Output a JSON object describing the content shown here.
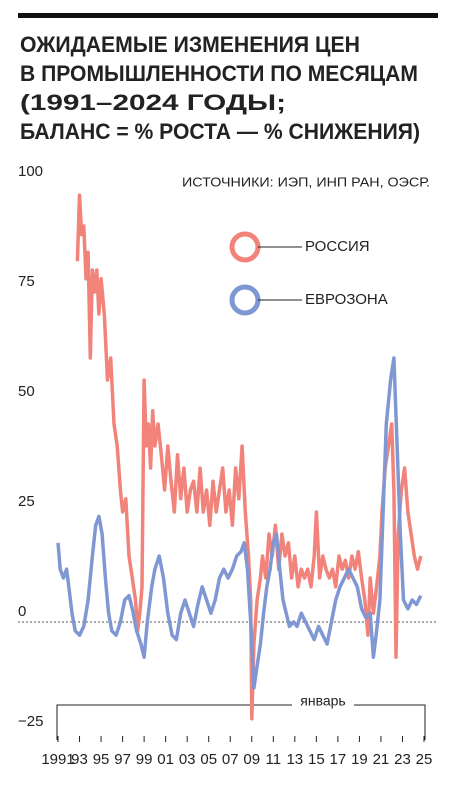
{
  "chart_data": {
    "type": "line",
    "title": [
      "ОЖИДАЕМЫЕ ИЗМЕНЕНИЯ ЦЕН",
      "В ПРОМЫШЛЕННОСТИ ПО МЕСЯЦАМ",
      "(1991–2024 ГОДЫ;",
      "БАЛАНС = % РОСТА — % СНИЖЕНИЯ)"
    ],
    "source": "ИСТОЧНИКИ: ИЭП, ИНП РАН, ОЭСР.",
    "annotation": "январь",
    "xlim": [
      1991,
      2025
    ],
    "xticks": [
      {
        "value": 1991,
        "label": "1991"
      },
      {
        "value": 1993,
        "label": "93"
      },
      {
        "value": 1995,
        "label": "95"
      },
      {
        "value": 1997,
        "label": "97"
      },
      {
        "value": 1999,
        "label": "99"
      },
      {
        "value": 2001,
        "label": "01"
      },
      {
        "value": 2003,
        "label": "03"
      },
      {
        "value": 2005,
        "label": "05"
      },
      {
        "value": 2007,
        "label": "07"
      },
      {
        "value": 2009,
        "label": "09"
      },
      {
        "value": 2011,
        "label": "11"
      },
      {
        "value": 2013,
        "label": "13"
      },
      {
        "value": 2015,
        "label": "15"
      },
      {
        "value": 2017,
        "label": "17"
      },
      {
        "value": 2019,
        "label": "19"
      },
      {
        "value": 2021,
        "label": "21"
      },
      {
        "value": 2023,
        "label": "23"
      },
      {
        "value": 2025,
        "label": "25"
      }
    ],
    "ylim": [
      -25,
      100
    ],
    "yticks": [
      100,
      75,
      50,
      25,
      0,
      {
        "value": -25,
        "label": "−25"
      }
    ],
    "series": [
      {
        "name": "РОССИЯ",
        "color": "#f2837b",
        "x": [
          1992.8,
          1993.0,
          1993.2,
          1993.4,
          1993.6,
          1993.8,
          1994.0,
          1994.2,
          1994.4,
          1994.6,
          1994.8,
          1995.0,
          1995.3,
          1995.6,
          1995.9,
          1996.2,
          1996.5,
          1996.8,
          1997.0,
          1997.3,
          1997.6,
          1997.9,
          1998.2,
          1998.4,
          1998.6,
          1998.8,
          1999.0,
          1999.2,
          1999.4,
          1999.6,
          1999.8,
          2000.0,
          2000.3,
          2000.6,
          2000.9,
          2001.2,
          2001.5,
          2001.8,
          2002.1,
          2002.4,
          2002.7,
          2003.0,
          2003.3,
          2003.6,
          2003.9,
          2004.2,
          2004.5,
          2004.8,
          2005.1,
          2005.4,
          2005.7,
          2006.0,
          2006.3,
          2006.6,
          2006.9,
          2007.2,
          2007.5,
          2007.8,
          2008.1,
          2008.4,
          2008.7,
          2008.9,
          2009.0,
          2009.2,
          2009.5,
          2009.8,
          2010.0,
          2010.3,
          2010.6,
          2010.9,
          2011.2,
          2011.5,
          2011.8,
          2012.1,
          2012.4,
          2012.7,
          2013.0,
          2013.3,
          2013.6,
          2013.9,
          2014.2,
          2014.5,
          2014.8,
          2015.0,
          2015.3,
          2015.6,
          2015.9,
          2016.2,
          2016.5,
          2016.8,
          2017.1,
          2017.4,
          2017.7,
          2018.0,
          2018.3,
          2018.6,
          2018.9,
          2019.2,
          2019.5,
          2019.8,
          2020.0,
          2020.3,
          2020.6,
          2020.9,
          2021.1,
          2021.4,
          2021.7,
          2022.0,
          2022.2,
          2022.4,
          2022.6,
          2022.9,
          2023.2,
          2023.5,
          2023.8,
          2024.1,
          2024.4,
          2024.7
        ],
        "values": [
          82,
          97,
          88,
          90,
          78,
          84,
          60,
          80,
          75,
          80,
          70,
          78,
          70,
          55,
          60,
          45,
          40,
          30,
          25,
          28,
          15,
          10,
          5,
          -2,
          2,
          8,
          55,
          40,
          45,
          35,
          48,
          40,
          45,
          38,
          30,
          40,
          32,
          25,
          38,
          28,
          35,
          25,
          30,
          32,
          25,
          35,
          25,
          30,
          22,
          32,
          25,
          30,
          35,
          25,
          30,
          22,
          35,
          28,
          40,
          25,
          15,
          5,
          -22,
          -5,
          5,
          10,
          15,
          10,
          20,
          15,
          22,
          12,
          20,
          15,
          18,
          10,
          15,
          8,
          12,
          10,
          12,
          8,
          15,
          25,
          10,
          15,
          12,
          10,
          12,
          8,
          15,
          12,
          14,
          10,
          15,
          12,
          16,
          10,
          5,
          -3,
          10,
          2,
          8,
          15,
          25,
          35,
          40,
          45,
          30,
          -8,
          20,
          30,
          35,
          25,
          20,
          15,
          12,
          15
        ]
      },
      {
        "name": "ЕВРОЗОНА",
        "color": "#7f97d3",
        "x": [
          1991.0,
          1991.2,
          1991.5,
          1991.8,
          1992.0,
          1992.3,
          1992.6,
          1993.0,
          1993.4,
          1993.8,
          1994.2,
          1994.5,
          1994.8,
          1995.1,
          1995.4,
          1995.7,
          1996.0,
          1996.4,
          1996.8,
          1997.2,
          1997.6,
          1997.9,
          1998.3,
          1998.7,
          1999.0,
          1999.3,
          1999.7,
          2000.0,
          2000.4,
          2000.8,
          2001.2,
          2001.6,
          2002.0,
          2002.4,
          2002.8,
          2003.2,
          2003.6,
          2004.0,
          2004.4,
          2004.8,
          2005.2,
          2005.6,
          2006.0,
          2006.4,
          2006.8,
          2007.2,
          2007.6,
          2008.0,
          2008.3,
          2008.6,
          2008.9,
          2009.2,
          2009.5,
          2009.8,
          2010.1,
          2010.4,
          2010.7,
          2011.0,
          2011.3,
          2011.6,
          2011.9,
          2012.2,
          2012.5,
          2012.9,
          2013.2,
          2013.6,
          2014.0,
          2014.4,
          2014.8,
          2015.2,
          2015.6,
          2016.0,
          2016.4,
          2016.8,
          2017.2,
          2017.6,
          2018.0,
          2018.4,
          2018.8,
          2019.2,
          2019.6,
          2020.0,
          2020.3,
          2020.6,
          2020.9,
          2021.2,
          2021.5,
          2021.9,
          2022.2,
          2022.5,
          2022.8,
          2023.1,
          2023.5,
          2023.9,
          2024.3,
          2024.7
        ],
        "values": [
          18,
          12,
          10,
          12,
          8,
          2,
          -2,
          -3,
          -1,
          5,
          15,
          22,
          24,
          20,
          10,
          2,
          -2,
          -3,
          0,
          5,
          6,
          3,
          -2,
          -5,
          -8,
          0,
          8,
          12,
          15,
          10,
          2,
          -3,
          -4,
          2,
          5,
          2,
          -1,
          4,
          8,
          5,
          2,
          5,
          10,
          12,
          10,
          12,
          15,
          16,
          18,
          12,
          0,
          -15,
          -10,
          -5,
          2,
          8,
          12,
          18,
          20,
          12,
          5,
          2,
          -1,
          0,
          -1,
          2,
          0,
          -2,
          -4,
          -1,
          -3,
          -5,
          0,
          5,
          8,
          10,
          12,
          10,
          8,
          3,
          1,
          2,
          -8,
          -2,
          5,
          25,
          45,
          55,
          60,
          40,
          20,
          5,
          3,
          5,
          4,
          6
        ]
      }
    ]
  }
}
